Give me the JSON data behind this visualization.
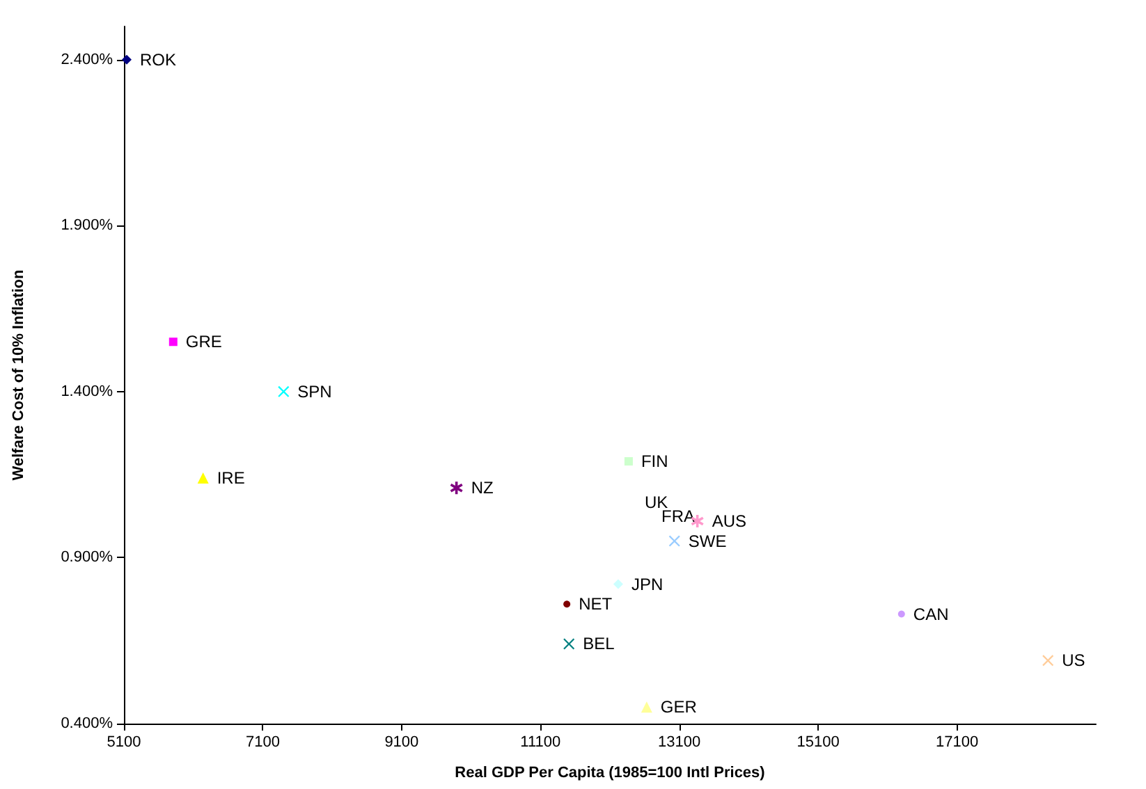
{
  "chart_data": {
    "type": "scatter",
    "xlabel": "Real GDP Per Capita (1985=100 Intl Prices)",
    "ylabel": "Welfare Cost of 10% Inflation",
    "xlim": [
      5100,
      19100
    ],
    "xticks": [
      5100,
      7100,
      9100,
      11100,
      13100,
      15100,
      17100
    ],
    "ylim": [
      0.4,
      2.5
    ],
    "yticks": [
      {
        "value": 0.4,
        "label": "0.400%"
      },
      {
        "value": 0.9,
        "label": "0.900%"
      },
      {
        "value": 1.4,
        "label": "1.400%"
      },
      {
        "value": 1.9,
        "label": "1.900%"
      },
      {
        "value": 2.4,
        "label": "2.400%"
      }
    ],
    "grid": false,
    "legend": false,
    "series": [
      {
        "name": "ROK",
        "color": "#000080",
        "marker": "diamond",
        "x": [
          5140
        ],
        "values": [
          2.4
        ]
      },
      {
        "name": "GRE",
        "color": "#ff00ff",
        "marker": "square",
        "x": [
          5810
        ],
        "values": [
          1.55
        ]
      },
      {
        "name": "SPN",
        "color": "#00ffff",
        "marker": "cross",
        "x": [
          7400
        ],
        "values": [
          1.4
        ]
      },
      {
        "name": "IRE",
        "color": "#ffff00",
        "marker": "triangle",
        "x": [
          6240
        ],
        "values": [
          1.14
        ]
      },
      {
        "name": "NZ",
        "color": "#800080",
        "marker": "star",
        "x": [
          9890
        ],
        "values": [
          1.11
        ]
      },
      {
        "name": "FIN",
        "color": "#ccffcc",
        "marker": "square",
        "x": [
          12370
        ],
        "values": [
          1.19
        ]
      },
      {
        "name": "AUS",
        "color": "#ff99cc",
        "marker": "star",
        "x": [
          13360
        ],
        "values": [
          1.01
        ]
      },
      {
        "name": "SWE",
        "color": "#99ccff",
        "marker": "cross",
        "x": [
          13030
        ],
        "values": [
          0.95
        ]
      },
      {
        "name": "JPN",
        "color": "#ccffff",
        "marker": "diamond",
        "x": [
          12220
        ],
        "values": [
          0.82
        ]
      },
      {
        "name": "NET",
        "color": "#800000",
        "marker": "circle",
        "x": [
          11480
        ],
        "values": [
          0.76
        ]
      },
      {
        "name": "BEL",
        "color": "#008080",
        "marker": "cross",
        "x": [
          11510
        ],
        "values": [
          0.64
        ]
      },
      {
        "name": "GER",
        "color": "#ffff99",
        "marker": "triangle",
        "x": [
          12630
        ],
        "values": [
          0.45
        ]
      },
      {
        "name": "CAN",
        "color": "#cc99ff",
        "marker": "circle",
        "x": [
          16300
        ],
        "values": [
          0.73
        ]
      },
      {
        "name": "US",
        "color": "#ffcc99",
        "marker": "cross",
        "x": [
          18410
        ],
        "values": [
          0.59
        ]
      }
    ],
    "annotations": [
      "UK",
      "FRA"
    ]
  }
}
